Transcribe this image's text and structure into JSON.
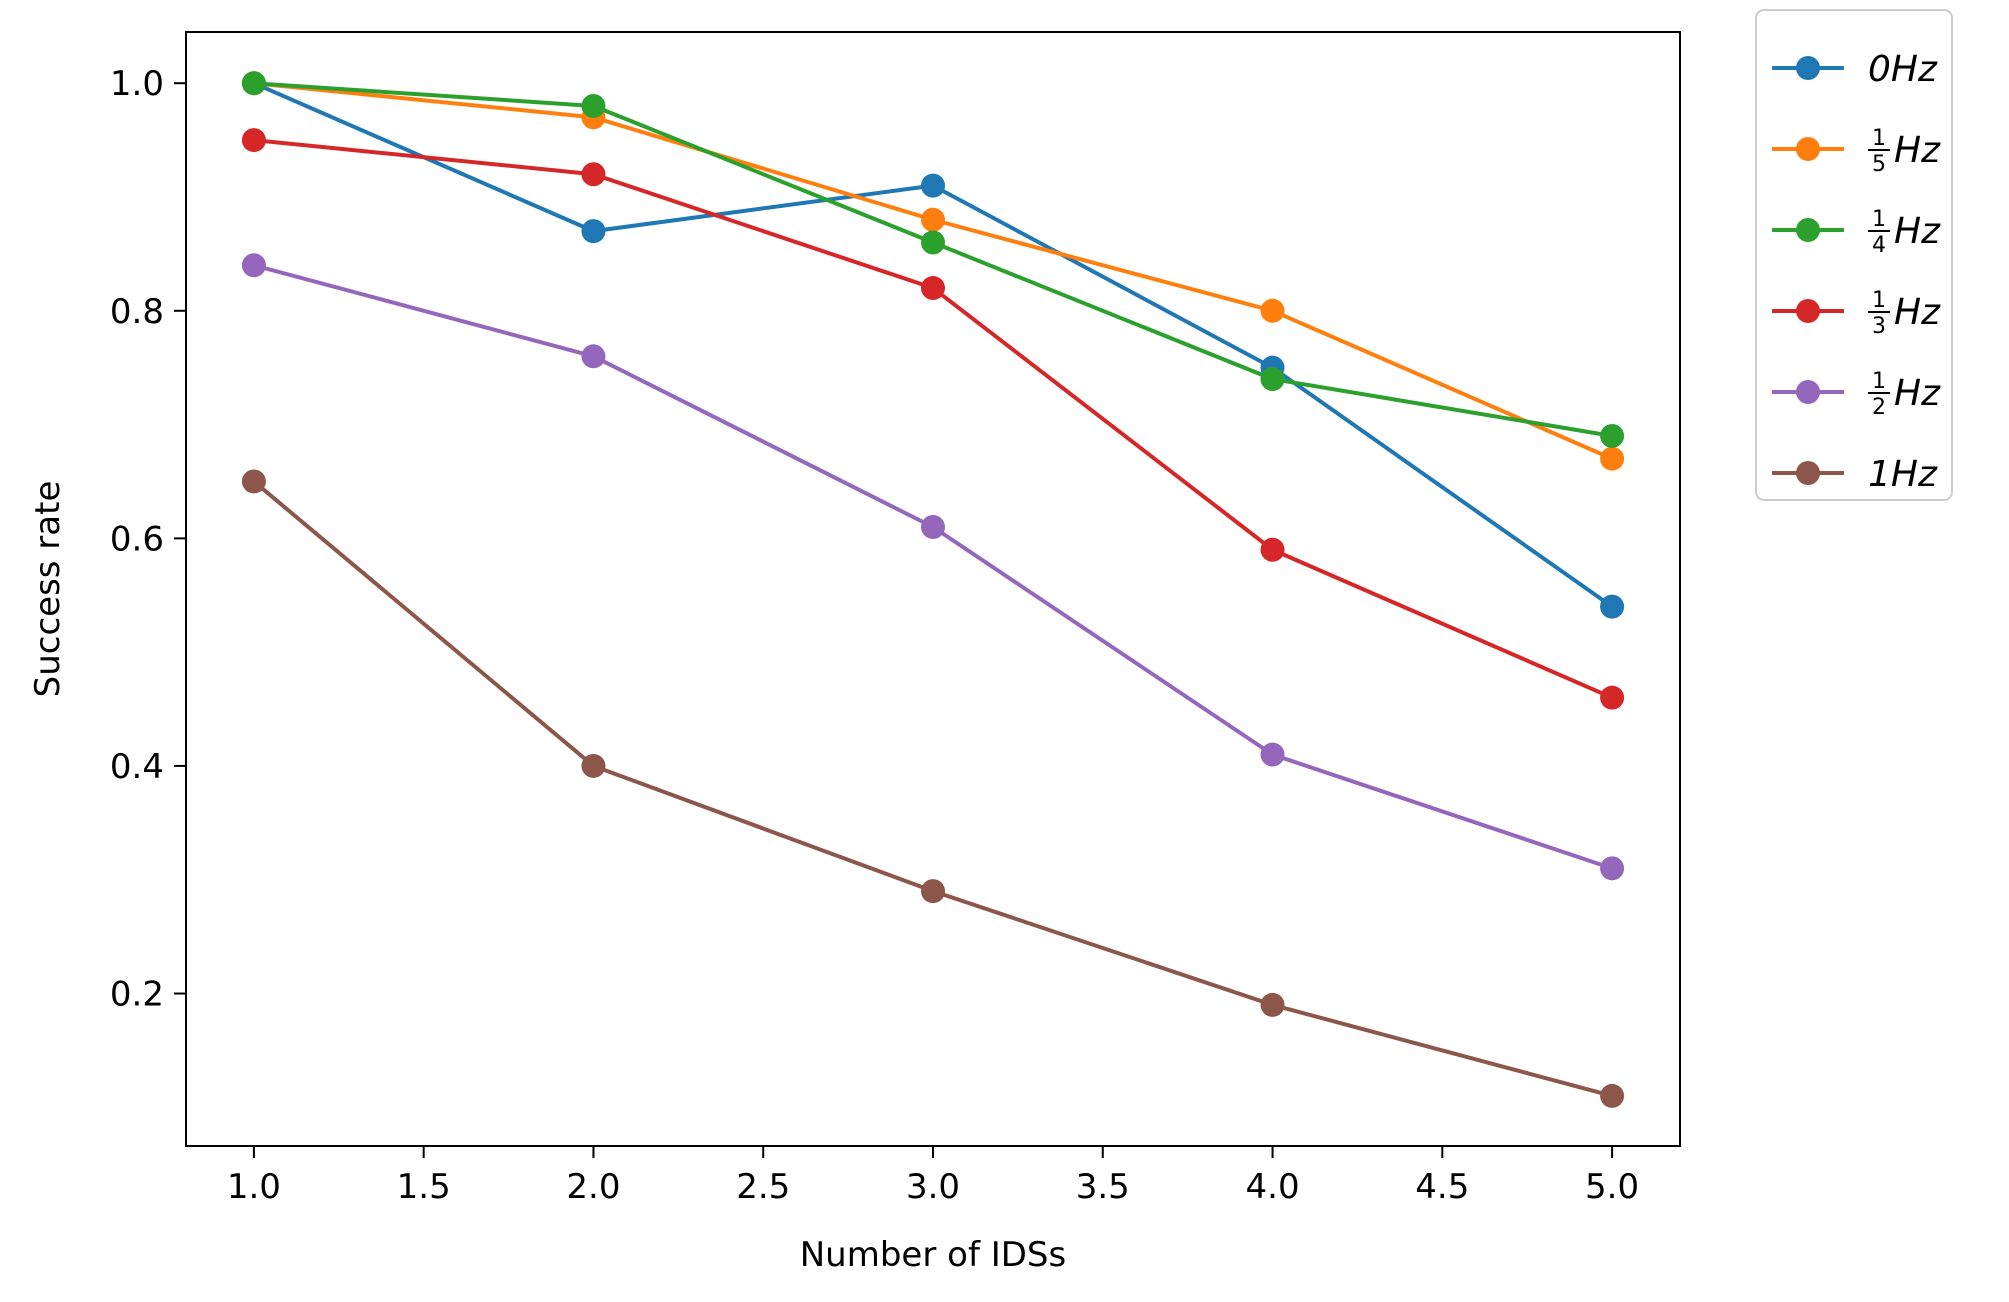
{
  "chart_data": {
    "type": "line",
    "title": "",
    "xlabel": "Number of IDSs",
    "ylabel": "Success rate",
    "xlim": [
      0.8,
      5.2
    ],
    "ylim": [
      0.066,
      1.045
    ],
    "xticks": [
      "1.0",
      "1.5",
      "2.0",
      "2.5",
      "3.0",
      "3.5",
      "4.0",
      "4.5",
      "5.0"
    ],
    "yticks": [
      "0.2",
      "0.4",
      "0.6",
      "0.8",
      "1.0"
    ],
    "grid": false,
    "legend_position": "outside-top-right",
    "x": [
      1,
      2,
      3,
      4,
      5
    ],
    "series": [
      {
        "name": "0Hz",
        "legend": {
          "num": "",
          "den": "",
          "text": "0Hz"
        },
        "color": "#1f77b4",
        "values": [
          1.0,
          0.87,
          0.91,
          0.75,
          0.54
        ]
      },
      {
        "name": "1/5 Hz",
        "legend": {
          "num": "1",
          "den": "5",
          "text": "Hz"
        },
        "color": "#ff7f0e",
        "values": [
          1.0,
          0.97,
          0.88,
          0.8,
          0.67
        ]
      },
      {
        "name": "1/4 Hz",
        "legend": {
          "num": "1",
          "den": "4",
          "text": "Hz"
        },
        "color": "#2ca02c",
        "values": [
          1.0,
          0.98,
          0.86,
          0.74,
          0.69
        ]
      },
      {
        "name": "1/3 Hz",
        "legend": {
          "num": "1",
          "den": "3",
          "text": "Hz"
        },
        "color": "#d62728",
        "values": [
          0.95,
          0.92,
          0.82,
          0.59,
          0.46
        ]
      },
      {
        "name": "1/2 Hz",
        "legend": {
          "num": "1",
          "den": "2",
          "text": "Hz"
        },
        "color": "#9467bd",
        "values": [
          0.84,
          0.76,
          0.61,
          0.41,
          0.31
        ]
      },
      {
        "name": "1Hz",
        "legend": {
          "num": "",
          "den": "",
          "text": "1Hz"
        },
        "color": "#8c564b",
        "values": [
          0.65,
          0.4,
          0.29,
          0.19,
          0.11
        ]
      }
    ]
  }
}
